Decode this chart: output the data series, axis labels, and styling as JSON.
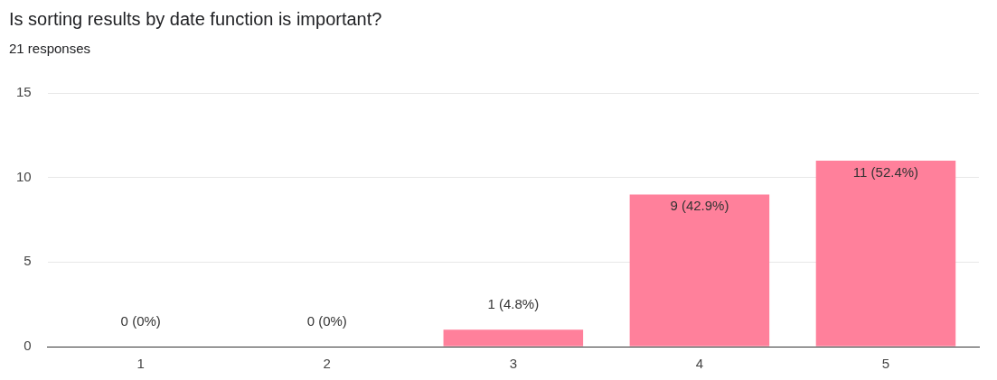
{
  "chart_data": {
    "type": "bar",
    "title": "Is sorting results by date function is important?",
    "subtitle": "21 responses",
    "categories": [
      "1",
      "2",
      "3",
      "4",
      "5"
    ],
    "values": [
      0,
      0,
      1,
      9,
      11
    ],
    "value_labels": [
      "0 (0%)",
      "0 (0%)",
      "1 (4.8%)",
      "9 (42.9%)",
      "11 (52.4%)"
    ],
    "color": "#ff809b",
    "ylim": [
      0,
      15
    ],
    "yticks": [
      0,
      5,
      10,
      15
    ],
    "grid": "y",
    "legend": false
  }
}
